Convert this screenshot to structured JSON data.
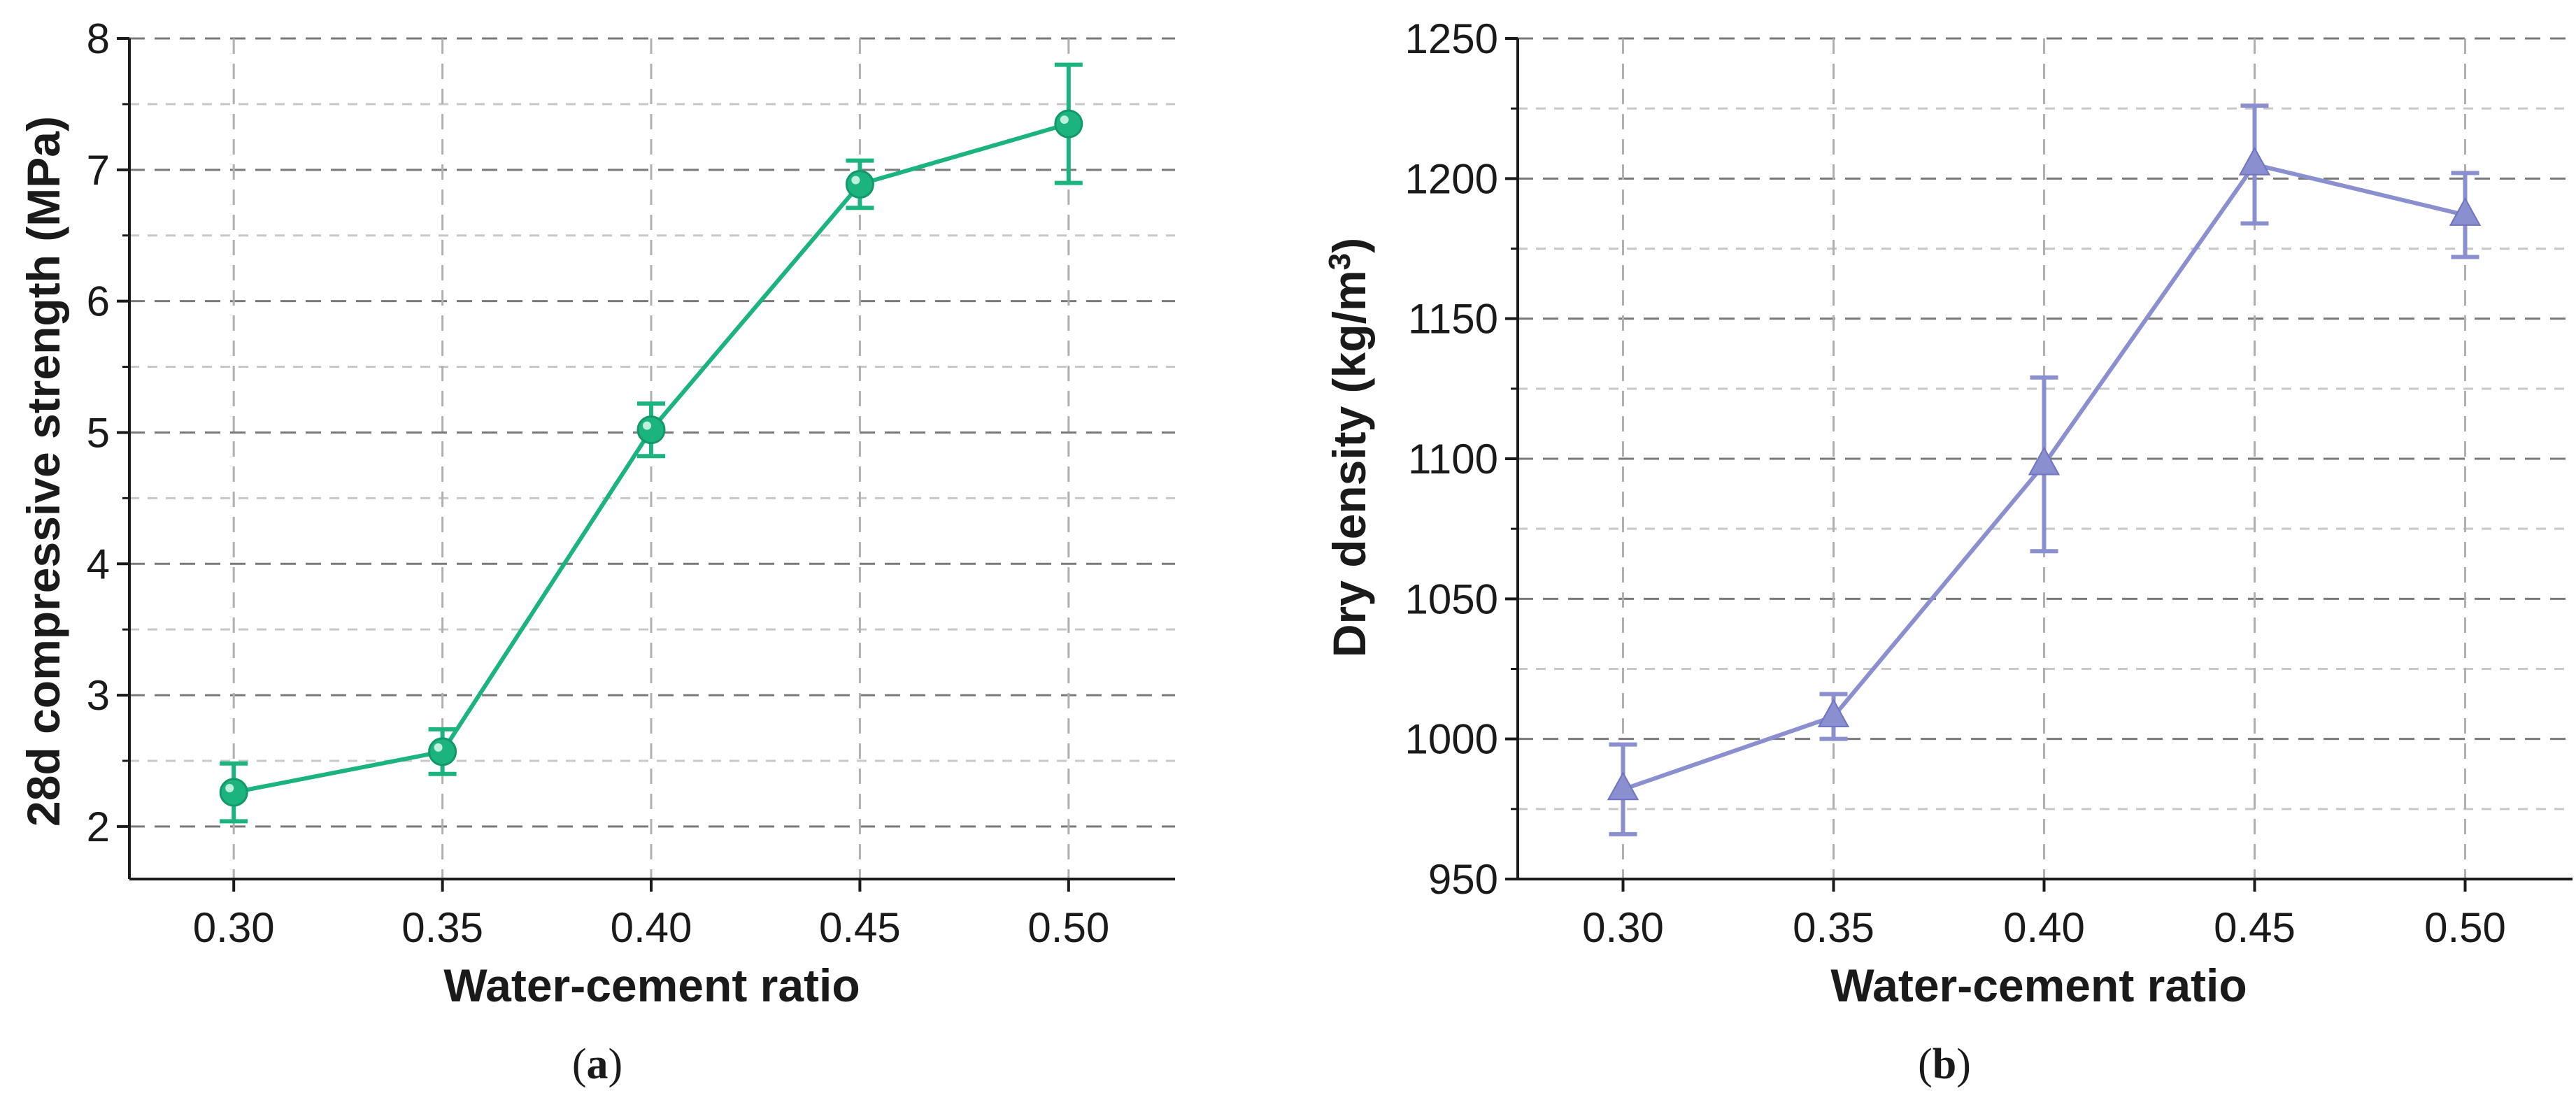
{
  "figure": {
    "panels": [
      "(a)",
      "(b)"
    ]
  },
  "chart_data": [
    {
      "type": "line",
      "panel_label": "a",
      "color": "#1bb37e",
      "marker": "circle",
      "x": [
        0.3,
        0.35,
        0.4,
        0.45,
        0.5
      ],
      "categories": [
        "0.30",
        "0.35",
        "0.40",
        "0.45",
        "0.50"
      ],
      "series": [
        {
          "name": "28d compressive strength",
          "values": [
            2.26,
            2.57,
            5.02,
            6.89,
            7.35
          ],
          "error": [
            0.22,
            0.17,
            0.2,
            0.18,
            0.45
          ]
        }
      ],
      "xlabel": "Water-cement ratio",
      "ylabel": "28d compressive strength (MPa)",
      "xlim": [
        0.275,
        0.5255
      ],
      "ylim": [
        1.6,
        8
      ],
      "yticks": [
        2,
        3,
        4,
        5,
        6,
        7,
        8
      ],
      "ytick_labels": [
        "2",
        "3",
        "4",
        "5",
        "6",
        "7",
        "8"
      ],
      "grid": true
    },
    {
      "type": "line",
      "panel_label": "b",
      "color": "#8a8fd0",
      "marker": "triangle",
      "x": [
        0.3,
        0.35,
        0.4,
        0.45,
        0.5
      ],
      "categories": [
        "0.30",
        "0.35",
        "0.40",
        "0.45",
        "0.50"
      ],
      "series": [
        {
          "name": "Dry density",
          "values": [
            982,
            1008,
            1098,
            1205,
            1187
          ],
          "error": [
            16,
            8,
            31,
            21,
            15
          ]
        }
      ],
      "xlabel": "Water-cement ratio",
      "ylabel_main": "Dry density (kg/m",
      "ylabel_sup": "3",
      "ylabel_end": ")",
      "xlim": [
        0.275,
        0.5255
      ],
      "ylim": [
        950,
        1250
      ],
      "yticks": [
        950,
        1000,
        1050,
        1100,
        1150,
        1200,
        1250
      ],
      "ytick_labels": [
        "950",
        "1000",
        "1050",
        "1100",
        "1150",
        "1200",
        "1250"
      ],
      "grid": true
    }
  ]
}
